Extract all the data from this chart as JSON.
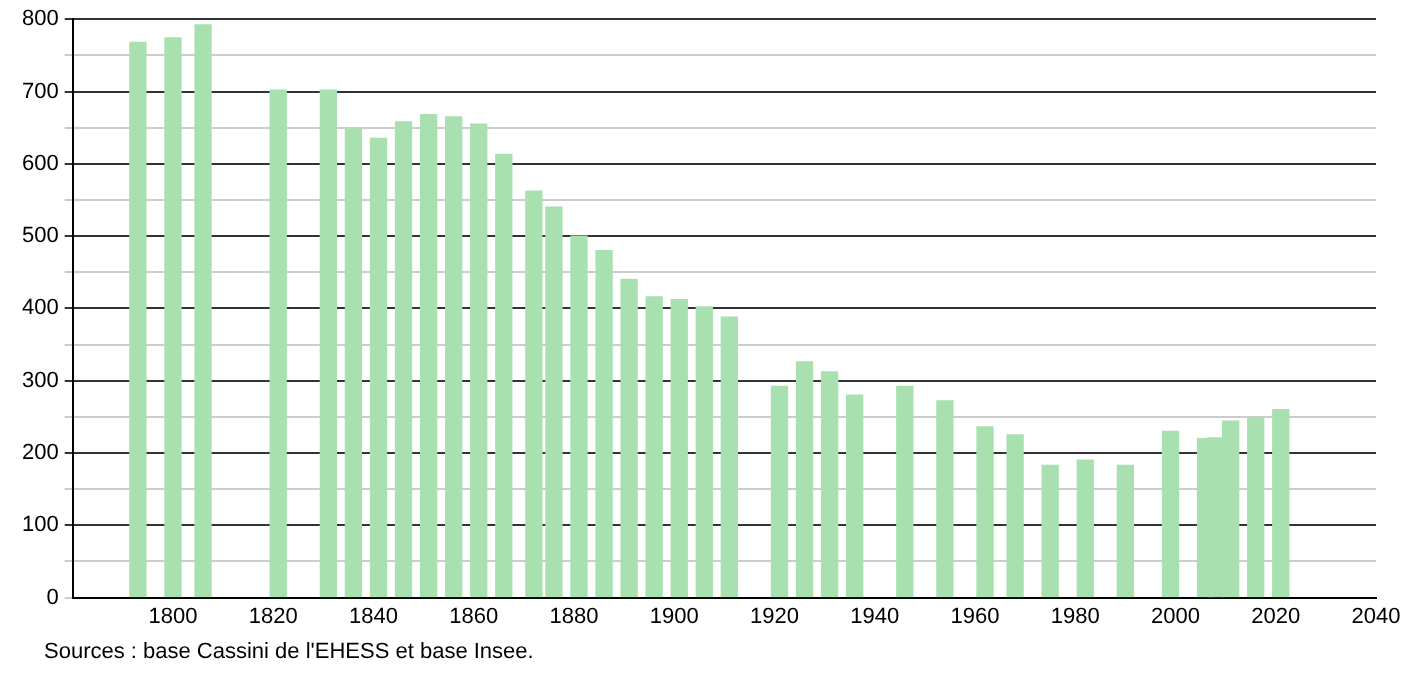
{
  "chart_data": {
    "type": "bar",
    "x": [
      1793,
      1800,
      1806,
      1821,
      1831,
      1836,
      1841,
      1846,
      1851,
      1856,
      1861,
      1866,
      1872,
      1876,
      1881,
      1886,
      1891,
      1896,
      1901,
      1906,
      1911,
      1921,
      1926,
      1931,
      1936,
      1946,
      1954,
      1962,
      1968,
      1975,
      1982,
      1990,
      1999,
      2006,
      2008,
      2011,
      2016,
      2021
    ],
    "values": [
      768,
      774,
      792,
      702,
      702,
      648,
      635,
      658,
      668,
      665,
      655,
      613,
      562,
      540,
      500,
      480,
      440,
      416,
      412,
      402,
      388,
      292,
      326,
      312,
      280,
      292,
      272,
      236,
      225,
      183,
      190,
      183,
      230,
      220,
      221,
      244,
      248,
      260
    ],
    "color": "#a8e0b0",
    "xlim": [
      1780,
      2040
    ],
    "xticks": [
      1800,
      1820,
      1840,
      1860,
      1880,
      1900,
      1920,
      1940,
      1960,
      1980,
      2000,
      2020,
      2040
    ],
    "ylim": [
      0,
      800
    ],
    "yticks": [
      0,
      {
        "value": 50,
        "label": null
      },
      100,
      {
        "value": 150,
        "label": null
      },
      200,
      {
        "value": 250,
        "label": null
      },
      300,
      {
        "value": 350,
        "label": null
      },
      400,
      {
        "value": 450,
        "label": null
      },
      500,
      {
        "value": 550,
        "label": null
      },
      600,
      {
        "value": 650,
        "label": null
      },
      700,
      {
        "value": 750,
        "label": null
      },
      800
    ],
    "grid": "y",
    "annotations": [
      "Sources : base Cassini de l'EHESS et base Insee."
    ]
  }
}
